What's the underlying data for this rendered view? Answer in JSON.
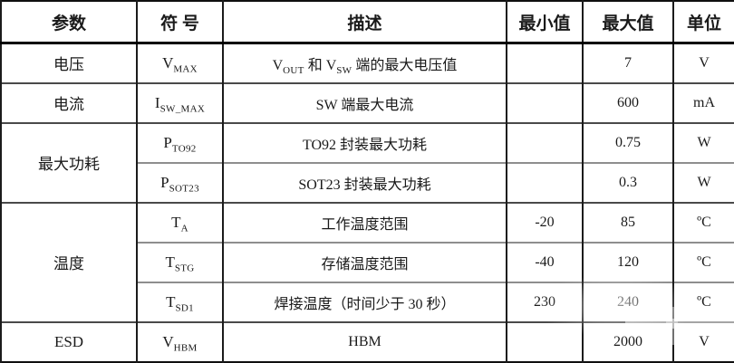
{
  "colors": {
    "background": "#ffffff",
    "text": "#1a1a1a",
    "border_outer": "#0f0f0f",
    "border_vertical": "#1b1b1b",
    "border_row": "#4a4a4a",
    "border_group_inner": "#8e8e8e"
  },
  "table": {
    "headers": [
      "参数",
      "符 号",
      "描述",
      "最小值",
      "最大值",
      "单位"
    ],
    "rows": [
      {
        "param": "电压",
        "span": 1,
        "sep": "dark",
        "symbol": [
          [
            "t",
            "V"
          ],
          [
            "sub",
            "MAX"
          ]
        ],
        "desc": [
          [
            "t",
            "V"
          ],
          [
            "sub",
            "OUT"
          ],
          [
            "t",
            " 和 V"
          ],
          [
            "sub",
            "SW"
          ],
          [
            "t",
            " 端的最大电压值"
          ]
        ],
        "min": "",
        "max": "7",
        "unit": "V"
      },
      {
        "param": "电流",
        "span": 1,
        "sep": "dark",
        "symbol": [
          [
            "t",
            "I"
          ],
          [
            "sub",
            "SW_MAX"
          ]
        ],
        "desc": [
          [
            "t",
            "SW 端最大电流"
          ]
        ],
        "min": "",
        "max": "600",
        "unit": "mA"
      },
      {
        "param": "最大功耗",
        "span": 2,
        "sep": "dark",
        "symbol": [
          [
            "t",
            "P"
          ],
          [
            "sub",
            "TO92"
          ]
        ],
        "desc": [
          [
            "t",
            "TO92 封装最大功耗"
          ]
        ],
        "min": "",
        "max": "0.75",
        "unit": "W"
      },
      {
        "sep": "gray",
        "symbol": [
          [
            "t",
            "P"
          ],
          [
            "sub",
            "SOT23"
          ]
        ],
        "desc": [
          [
            "t",
            "SOT23 封装最大功耗"
          ]
        ],
        "min": "",
        "max": "0.3",
        "unit": "W"
      },
      {
        "param": "温度",
        "span": 3,
        "sep": "dark",
        "symbol": [
          [
            "t",
            "T"
          ],
          [
            "sub",
            "A"
          ]
        ],
        "desc": [
          [
            "t",
            "工作温度范围"
          ]
        ],
        "min": "-20",
        "max": "85",
        "unit": "ºC"
      },
      {
        "sep": "gray",
        "symbol": [
          [
            "t",
            "T"
          ],
          [
            "sub",
            "STG"
          ]
        ],
        "desc": [
          [
            "t",
            "存储温度范围"
          ]
        ],
        "min": "-40",
        "max": "120",
        "unit": "ºC"
      },
      {
        "sep": "gray",
        "symbol": [
          [
            "t",
            "T"
          ],
          [
            "sub",
            "SD1"
          ]
        ],
        "desc": [
          [
            "t",
            "焊接温度（时间少于 30 秒）"
          ]
        ],
        "min": "230",
        "max": "240",
        "unit": "ºC"
      },
      {
        "param": "ESD",
        "span": 1,
        "sep": "dark",
        "symbol": [
          [
            "t",
            "V"
          ],
          [
            "sub",
            "HBM"
          ]
        ],
        "desc": [
          [
            "t",
            "HBM"
          ]
        ],
        "min": "",
        "max": "2000",
        "unit": "V"
      }
    ]
  }
}
